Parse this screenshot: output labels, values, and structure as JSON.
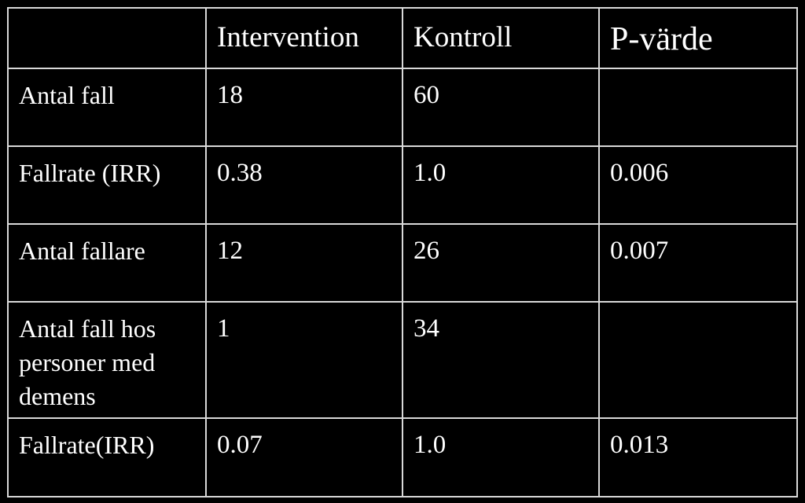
{
  "table": {
    "header": [
      null,
      "Intervention",
      "Kontroll",
      "P-värde"
    ],
    "rows": [
      [
        "Antal fall",
        "18",
        "60",
        null
      ],
      [
        "Fallrate (IRR)",
        "0.38",
        "1.0",
        "0.006"
      ],
      [
        "Antal fallare",
        "12",
        "26",
        "0.007"
      ],
      [
        "Antal fall hos personer med demens",
        "1",
        "34",
        null
      ],
      [
        "Fallrate(IRR)",
        "0.07",
        "1.0",
        "0.013"
      ]
    ]
  }
}
